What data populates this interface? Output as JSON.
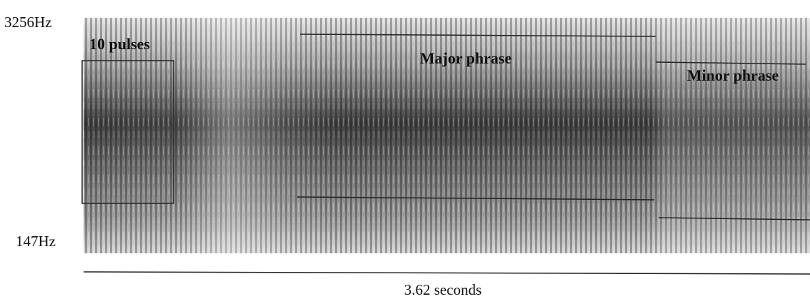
{
  "spectrogram": {
    "freq_max_label": "3256Hz",
    "freq_min_label": "147Hz",
    "annotations": {
      "pulses": "10 pulses",
      "major": "Major phrase",
      "minor": "Minor phrase"
    },
    "duration_label": "3.62 seconds"
  }
}
